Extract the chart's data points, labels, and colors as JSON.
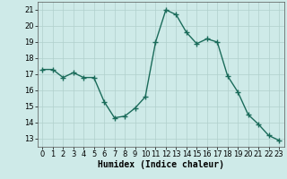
{
  "x": [
    0,
    1,
    2,
    3,
    4,
    5,
    6,
    7,
    8,
    9,
    10,
    11,
    12,
    13,
    14,
    15,
    16,
    17,
    18,
    19,
    20,
    21,
    22,
    23
  ],
  "y": [
    17.3,
    17.3,
    16.8,
    17.1,
    16.8,
    16.8,
    15.3,
    14.3,
    14.4,
    14.9,
    15.6,
    19.0,
    21.0,
    20.7,
    19.6,
    18.9,
    19.2,
    19.0,
    16.9,
    15.9,
    14.5,
    13.9,
    13.2,
    12.9
  ],
  "line_color": "#1a6b5a",
  "marker": "+",
  "marker_size": 4,
  "line_width": 1.0,
  "bg_color": "#ceeae8",
  "grid_color": "#b0d0cc",
  "xlabel": "Humidex (Indice chaleur)",
  "xlabel_fontsize": 7,
  "tick_fontsize": 6,
  "ylim": [
    12.5,
    21.5
  ],
  "yticks": [
    13,
    14,
    15,
    16,
    17,
    18,
    19,
    20,
    21
  ],
  "xlim": [
    -0.5,
    23.5
  ],
  "xticks": [
    0,
    1,
    2,
    3,
    4,
    5,
    6,
    7,
    8,
    9,
    10,
    11,
    12,
    13,
    14,
    15,
    16,
    17,
    18,
    19,
    20,
    21,
    22,
    23
  ]
}
